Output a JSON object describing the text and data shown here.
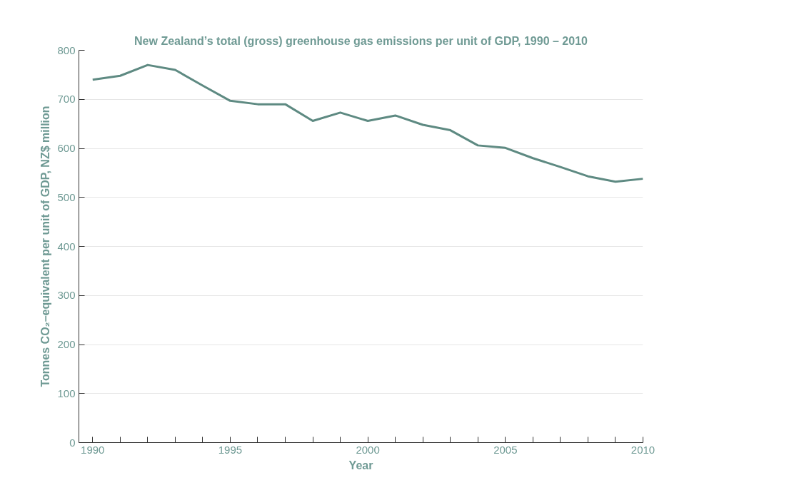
{
  "chart_data": {
    "type": "line",
    "title": "New Zealand’s total (gross) greenhouse gas emissions per unit of GDP, 1990 – 2010",
    "xlabel": "Year",
    "ylabel": "Tonnes CO₂–equivalent per unit of GDP, NZ$ million",
    "x": [
      1990,
      1991,
      1992,
      1993,
      1994,
      1995,
      1996,
      1997,
      1998,
      1999,
      2000,
      2001,
      2002,
      2003,
      2004,
      2005,
      2006,
      2007,
      2008,
      2009,
      2010
    ],
    "series": [
      {
        "color": "#5e8a82",
        "values": [
          740,
          748,
          770,
          760,
          728,
          697,
          690,
          690,
          656,
          673,
          656,
          667,
          648,
          637,
          606,
          601,
          580,
          562,
          543,
          532,
          538
        ]
      }
    ],
    "xlim": [
      1989.5,
      2010
    ],
    "ylim": [
      0,
      800
    ],
    "xticks": [
      1990,
      {
        "value": 1991,
        "label": null
      },
      {
        "value": 1992,
        "label": null
      },
      {
        "value": 1993,
        "label": null
      },
      {
        "value": 1994,
        "label": null
      },
      1995,
      {
        "value": 1996,
        "label": null
      },
      {
        "value": 1997,
        "label": null
      },
      {
        "value": 1998,
        "label": null
      },
      {
        "value": 1999,
        "label": null
      },
      2000,
      {
        "value": 2001,
        "label": null
      },
      {
        "value": 2002,
        "label": null
      },
      {
        "value": 2003,
        "label": null
      },
      {
        "value": 2004,
        "label": null
      },
      2005,
      {
        "value": 2006,
        "label": null
      },
      {
        "value": 2007,
        "label": null
      },
      {
        "value": 2008,
        "label": null
      },
      {
        "value": 2009,
        "label": null
      },
      2010
    ],
    "yticks": [
      0,
      100,
      200,
      300,
      400,
      500,
      600,
      700,
      800
    ],
    "grid": "y",
    "marker": "none",
    "line_style": "solid"
  }
}
